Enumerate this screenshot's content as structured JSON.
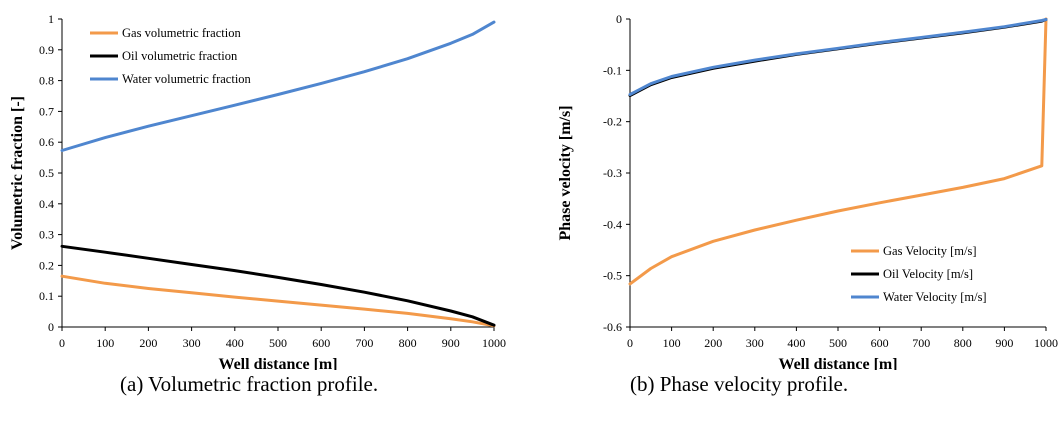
{
  "colors": {
    "gas": "#F39A4A",
    "oil": "#000000",
    "water": "#4F86CF"
  },
  "captions": {
    "a": "(a)  Volumetric fraction profile.",
    "b": "(b)  Phase velocity profile."
  },
  "chart_data": [
    {
      "type": "line",
      "xlabel": "Well distance [m]",
      "ylabel": "Volumetric fraction [-]",
      "xlim": [
        0,
        1000
      ],
      "ylim": [
        0,
        1
      ],
      "xticks": [
        "0",
        "100",
        "200",
        "300",
        "400",
        "500",
        "600",
        "700",
        "800",
        "900",
        "1000"
      ],
      "yticks": [
        "0",
        "0.1",
        "0.2",
        "0.3",
        "0.4",
        "0.5",
        "0.6",
        "0.7",
        "0.8",
        "0.9",
        "1"
      ],
      "grid": false,
      "legend_position": "top-left",
      "x": [
        0,
        100,
        200,
        300,
        400,
        500,
        600,
        700,
        800,
        900,
        950,
        1000
      ],
      "series": [
        {
          "name": "Gas volumetric fraction",
          "color": "gas",
          "values": [
            0.165,
            0.142,
            0.125,
            0.111,
            0.097,
            0.084,
            0.071,
            0.058,
            0.044,
            0.027,
            0.017,
            0.004
          ]
        },
        {
          "name": "Oil volumetric fraction",
          "color": "oil",
          "values": [
            0.262,
            0.243,
            0.223,
            0.203,
            0.183,
            0.161,
            0.138,
            0.113,
            0.085,
            0.052,
            0.033,
            0.006
          ]
        },
        {
          "name": "Water volumetric fraction",
          "color": "water",
          "values": [
            0.573,
            0.615,
            0.652,
            0.686,
            0.72,
            0.755,
            0.791,
            0.829,
            0.871,
            0.921,
            0.95,
            0.99
          ]
        }
      ]
    },
    {
      "type": "line",
      "xlabel": "Well distance [m]",
      "ylabel": "Phase velocity [m/s]",
      "xlim": [
        0,
        1000
      ],
      "ylim": [
        -0.6,
        0
      ],
      "xticks": [
        "0",
        "100",
        "200",
        "300",
        "400",
        "500",
        "600",
        "700",
        "800",
        "900",
        "1000"
      ],
      "yticks": [
        "-0.6",
        "-0.5",
        "-0.4",
        "-0.3",
        "-0.2",
        "-0.1",
        "0"
      ],
      "grid": false,
      "legend_position": "bottom-right",
      "x": [
        0,
        50,
        100,
        200,
        300,
        400,
        500,
        600,
        700,
        800,
        900,
        990,
        1000
      ],
      "series": [
        {
          "name": "Gas Velocity [m/s]",
          "color": "gas",
          "x": [
            0,
            50,
            100,
            200,
            300,
            400,
            500,
            600,
            700,
            800,
            900,
            990,
            1000
          ],
          "values": [
            -0.516,
            -0.486,
            -0.463,
            -0.433,
            -0.411,
            -0.392,
            -0.374,
            -0.358,
            -0.343,
            -0.328,
            -0.311,
            -0.286,
            0
          ]
        },
        {
          "name": "Oil Velocity [m/s]",
          "color": "oil",
          "x": [
            0,
            50,
            100,
            200,
            300,
            400,
            500,
            600,
            700,
            800,
            900,
            990,
            1000
          ],
          "values": [
            -0.149,
            -0.128,
            -0.114,
            -0.096,
            -0.082,
            -0.069,
            -0.058,
            -0.047,
            -0.037,
            -0.027,
            -0.016,
            -0.004,
            -0.001
          ]
        },
        {
          "name": "Water Velocity [m/s]",
          "color": "water",
          "x": [
            0,
            50,
            100,
            200,
            300,
            400,
            500,
            600,
            700,
            800,
            900,
            990,
            1000
          ],
          "values": [
            -0.147,
            -0.126,
            -0.112,
            -0.094,
            -0.08,
            -0.068,
            -0.057,
            -0.046,
            -0.036,
            -0.026,
            -0.015,
            -0.003,
            -0.001
          ]
        }
      ]
    }
  ]
}
